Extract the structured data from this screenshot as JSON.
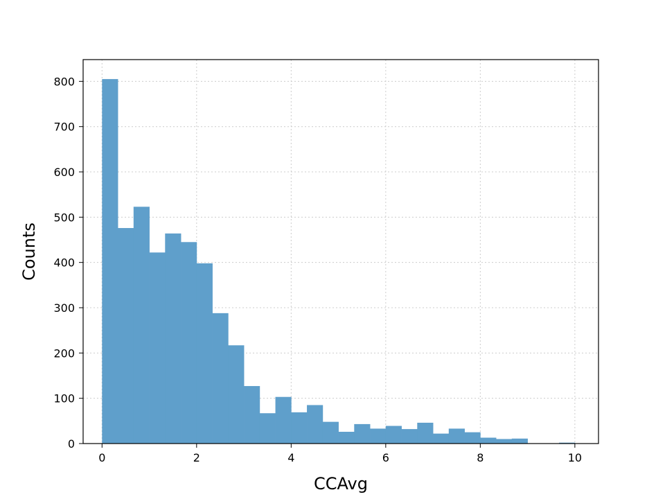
{
  "chart_data": {
    "type": "bar",
    "title": "",
    "xlabel": "CCAvg",
    "ylabel": "Counts",
    "xlim": [
      -0.4,
      10.5
    ],
    "ylim": [
      0,
      848
    ],
    "bin_width": 0.3333,
    "bin_start": 0.0,
    "bin_values": [
      805,
      476,
      523,
      422,
      464,
      445,
      398,
      288,
      217,
      127,
      67,
      103,
      69,
      85,
      48,
      26,
      43,
      33,
      39,
      32,
      46,
      22,
      33,
      25,
      13,
      10,
      11,
      0,
      0,
      2
    ],
    "x_ticks": [
      0,
      2,
      4,
      6,
      8,
      10
    ],
    "x_tick_labels": [
      "0",
      "2",
      "4",
      "6",
      "8",
      "10"
    ],
    "y_ticks": [
      0,
      100,
      200,
      300,
      400,
      500,
      600,
      700,
      800
    ],
    "y_tick_labels": [
      "0",
      "100",
      "200",
      "300",
      "400",
      "500",
      "600",
      "700",
      "800"
    ],
    "grid": true,
    "bar_color": "#5f9fcb"
  }
}
